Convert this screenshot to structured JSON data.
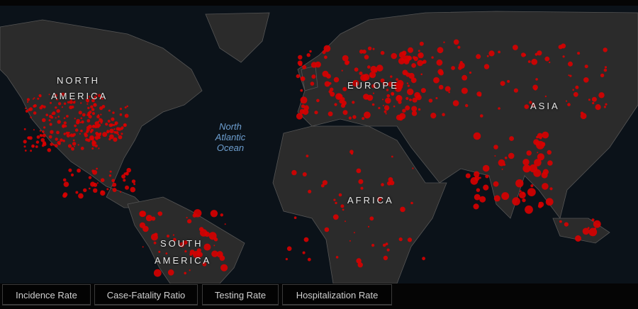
{
  "map": {
    "labels": {
      "north_america": [
        "NORTH",
        "AMERICA"
      ],
      "south_america": [
        "SOUTH",
        "AMERICA"
      ],
      "europe": "EUROPE",
      "africa": "AFRICA",
      "asia": "ASIA",
      "north_atlantic": [
        "North",
        "Atlantic",
        "Ocean"
      ]
    },
    "colors": {
      "ocean": "#0b1219",
      "land": "#2b2b2b",
      "borders": "#8a8a8a",
      "cases": "#e00000"
    }
  },
  "tabs": [
    {
      "label": "Incidence Rate"
    },
    {
      "label": "Case-Fatality Ratio"
    },
    {
      "label": "Testing Rate"
    },
    {
      "label": "Hospitalization Rate"
    }
  ]
}
